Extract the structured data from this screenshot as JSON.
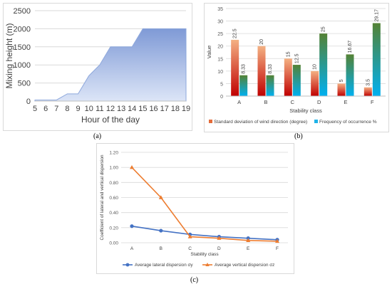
{
  "chart_data": [
    {
      "panel_label": "(a)",
      "type": "area",
      "xlabel": "Hour of the day",
      "ylabel": "Mixing height (m)",
      "x": [
        5,
        6,
        7,
        8,
        9,
        10,
        11,
        12,
        13,
        14,
        15,
        16,
        17,
        18,
        19
      ],
      "y": [
        30,
        30,
        30,
        200,
        200,
        700,
        1000,
        1500,
        1500,
        1500,
        2000,
        2000,
        2000,
        2000,
        2000
      ],
      "xlim": [
        5,
        19
      ],
      "ylim": [
        0,
        2500
      ],
      "yticks": [
        "0",
        "500",
        "1000",
        "1500",
        "2000",
        "2500"
      ],
      "xticks": [
        "5",
        "6",
        "7",
        "8",
        "9",
        "10",
        "11",
        "12",
        "13",
        "14",
        "15",
        "16",
        "17",
        "18",
        "19"
      ],
      "grid": true,
      "colors": {
        "fill_top": "#7f9ad6",
        "fill_bottom": "#dce5f7",
        "stroke": "#8ea8dc"
      }
    },
    {
      "panel_label": "(b)",
      "type": "bar",
      "xlabel": "Stability class",
      "ylabel": "Value",
      "categories": [
        "A",
        "B",
        "C",
        "D",
        "E",
        "F"
      ],
      "series": [
        {
          "name": "Standard deviation of wind direction (degree)",
          "values": [
            22.5,
            20,
            15,
            10,
            5,
            3.5
          ],
          "labels": [
            "22.5",
            "20",
            "15",
            "10",
            "5",
            "3.5"
          ]
        },
        {
          "name": "Frequency of occurrence %",
          "values": [
            8.33,
            8.33,
            12.5,
            25,
            16.67,
            29.17
          ],
          "labels": [
            "8.33",
            "8.33",
            "12.5",
            "25",
            "16.67",
            "29.17"
          ]
        }
      ],
      "ylim": [
        0,
        35
      ],
      "yticks": [
        "0",
        "5",
        "10",
        "15",
        "20",
        "25",
        "30",
        "35"
      ],
      "grid": true,
      "legend": "bottom",
      "colors": {
        "s1_top": "#f4b183",
        "s1_bottom": "#c00000",
        "s2_top": "#548235",
        "s2_bottom": "#00b0f0"
      }
    },
    {
      "panel_label": "(c)",
      "type": "line",
      "xlabel": "Stability class",
      "ylabel": "Coefficient of lateral and vertical dispersion",
      "categories": [
        "A",
        "B",
        "C",
        "D",
        "E",
        "F"
      ],
      "series": [
        {
          "name": "Average lateral dispersion σy",
          "values": [
            0.22,
            0.16,
            0.11,
            0.08,
            0.06,
            0.04
          ],
          "marker": "circle"
        },
        {
          "name": "Average vertical dispersion σz",
          "values": [
            1.0,
            0.6,
            0.08,
            0.06,
            0.03,
            0.02
          ],
          "marker": "triangle"
        }
      ],
      "ylim": [
        0,
        1.2
      ],
      "yticks": [
        "0.00",
        "0.20",
        "0.40",
        "0.60",
        "0.80",
        "1.00",
        "1.20"
      ],
      "grid": true,
      "legend": "bottom",
      "colors": {
        "s1": "#4472c4",
        "s2": "#ed7d31"
      }
    }
  ]
}
